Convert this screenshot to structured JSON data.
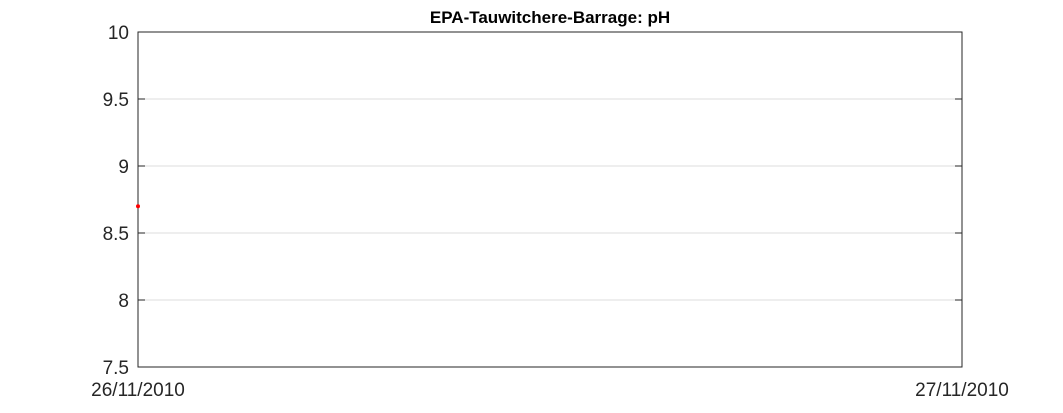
{
  "chart_data": {
    "type": "scatter",
    "title": "EPA-Tauwitchere-Barrage: pH",
    "xlabel": "",
    "ylabel": "",
    "x_ticks": [
      "26/11/2010",
      "27/11/2010"
    ],
    "xlim": [
      "26/11/2010",
      "27/11/2010"
    ],
    "ylim": [
      7.5,
      10
    ],
    "y_ticks": [
      7.5,
      8,
      8.5,
      9,
      9.5,
      10
    ],
    "grid": "horizontal",
    "series": [
      {
        "color": "#ff0000",
        "points": [
          {
            "x": "26/11/2010",
            "y": 8.7
          }
        ]
      }
    ]
  }
}
